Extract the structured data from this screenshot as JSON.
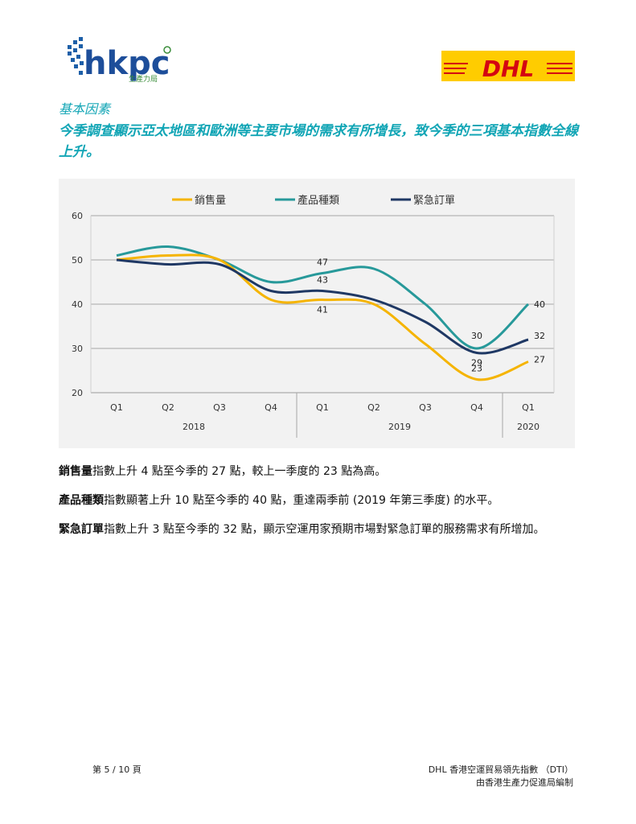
{
  "header": {
    "logo_text": "hkpc",
    "logo_subtext": "生產力局",
    "partner_logo": "DHL"
  },
  "section_title": "基本因素",
  "intro": "今季調查顯示亞太地區和歐洲等主要市場的需求有所增長，致今季的三項基本指數全線上升。",
  "chart_data": {
    "type": "line",
    "groups": [
      {
        "label": "2018",
        "categories": [
          "Q1",
          "Q2",
          "Q3",
          "Q4"
        ]
      },
      {
        "label": "2019",
        "categories": [
          "Q1",
          "Q2",
          "Q3",
          "Q4"
        ]
      },
      {
        "label": "2020",
        "categories": [
          "Q1"
        ]
      }
    ],
    "series": [
      {
        "name": "銷售量",
        "color": "#f5b400",
        "values": [
          50,
          51,
          50,
          41,
          41,
          40,
          31,
          23,
          27
        ],
        "value_labels": [
          null,
          null,
          null,
          null,
          "41",
          null,
          null,
          "23",
          "27"
        ]
      },
      {
        "name": "產品種類",
        "color": "#27999a",
        "values": [
          51,
          53,
          50,
          45,
          47,
          48,
          40,
          30,
          40
        ],
        "value_labels": [
          null,
          null,
          null,
          null,
          "47",
          null,
          null,
          "30",
          "40"
        ]
      },
      {
        "name": "緊急訂單",
        "color": "#1f3864",
        "values": [
          50,
          49,
          49,
          43,
          43,
          41,
          36,
          29,
          32
        ],
        "value_labels": [
          null,
          null,
          null,
          null,
          "43",
          null,
          null,
          "29",
          "32"
        ]
      }
    ],
    "ylim": [
      20,
      60
    ],
    "yticks": [
      20,
      30,
      40,
      50,
      60
    ],
    "grid": true,
    "legend": "top"
  },
  "paragraphs": [
    {
      "lead": "銷售量",
      "text": "指數上升 4 點至今季的 27 點，較上一季度的 23 點為高。"
    },
    {
      "lead": "產品種類",
      "text": "指數顯著上升 10 點至今季的 40 點，重達兩季前 (2019 年第三季度) 的水平。"
    },
    {
      "lead": "緊急訂單",
      "text": "指數上升 3 點至今季的 32 點，顯示空運用家預期市場對緊急訂單的服務需求有所增加。"
    }
  ],
  "footer": {
    "page": "第 5 / 10 頁",
    "title": "DHL 香港空運貿易領先指數 （DTI）",
    "publisher": "由香港生產力促進局編制"
  }
}
